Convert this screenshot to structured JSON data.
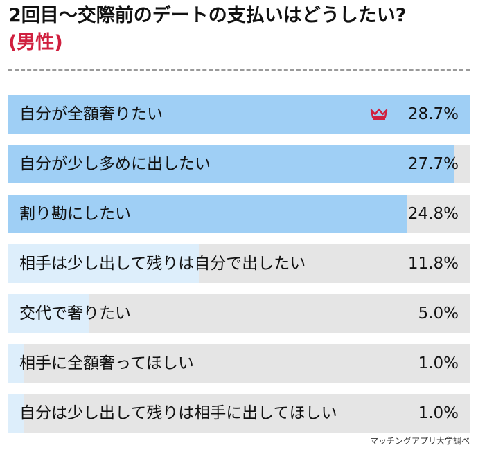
{
  "header": {
    "title": "2回目〜交際前のデートの支払いはどうしたい?",
    "subtitle": "(男性)"
  },
  "colors": {
    "bar_strong": "#9fcff5",
    "bar_light": "#ddeefb",
    "track": "#e5e5e5",
    "accent": "#d0203f"
  },
  "chart_data": {
    "type": "bar",
    "orientation": "horizontal",
    "unit": "%",
    "xlim": [
      0,
      28.7
    ],
    "categories": [
      "自分が全額奢りたい",
      "自分が少し多めに出したい",
      "割り勘にしたい",
      "相手は少し出して残りは自分で出したい",
      "交代で奢りたい",
      "相手に全額奢ってほしい",
      "自分は少し出して残りは相手に出してほしい"
    ],
    "values": [
      28.7,
      27.7,
      24.8,
      11.8,
      5.0,
      1.0,
      1.0
    ],
    "value_labels": [
      "28.7%",
      "27.7%",
      "24.8%",
      "11.8%",
      "5.0%",
      "1.0%",
      "1.0%"
    ],
    "top_marker_icon": "crown-icon"
  },
  "footer": {
    "source": "マッチングアプリ大学調べ"
  }
}
